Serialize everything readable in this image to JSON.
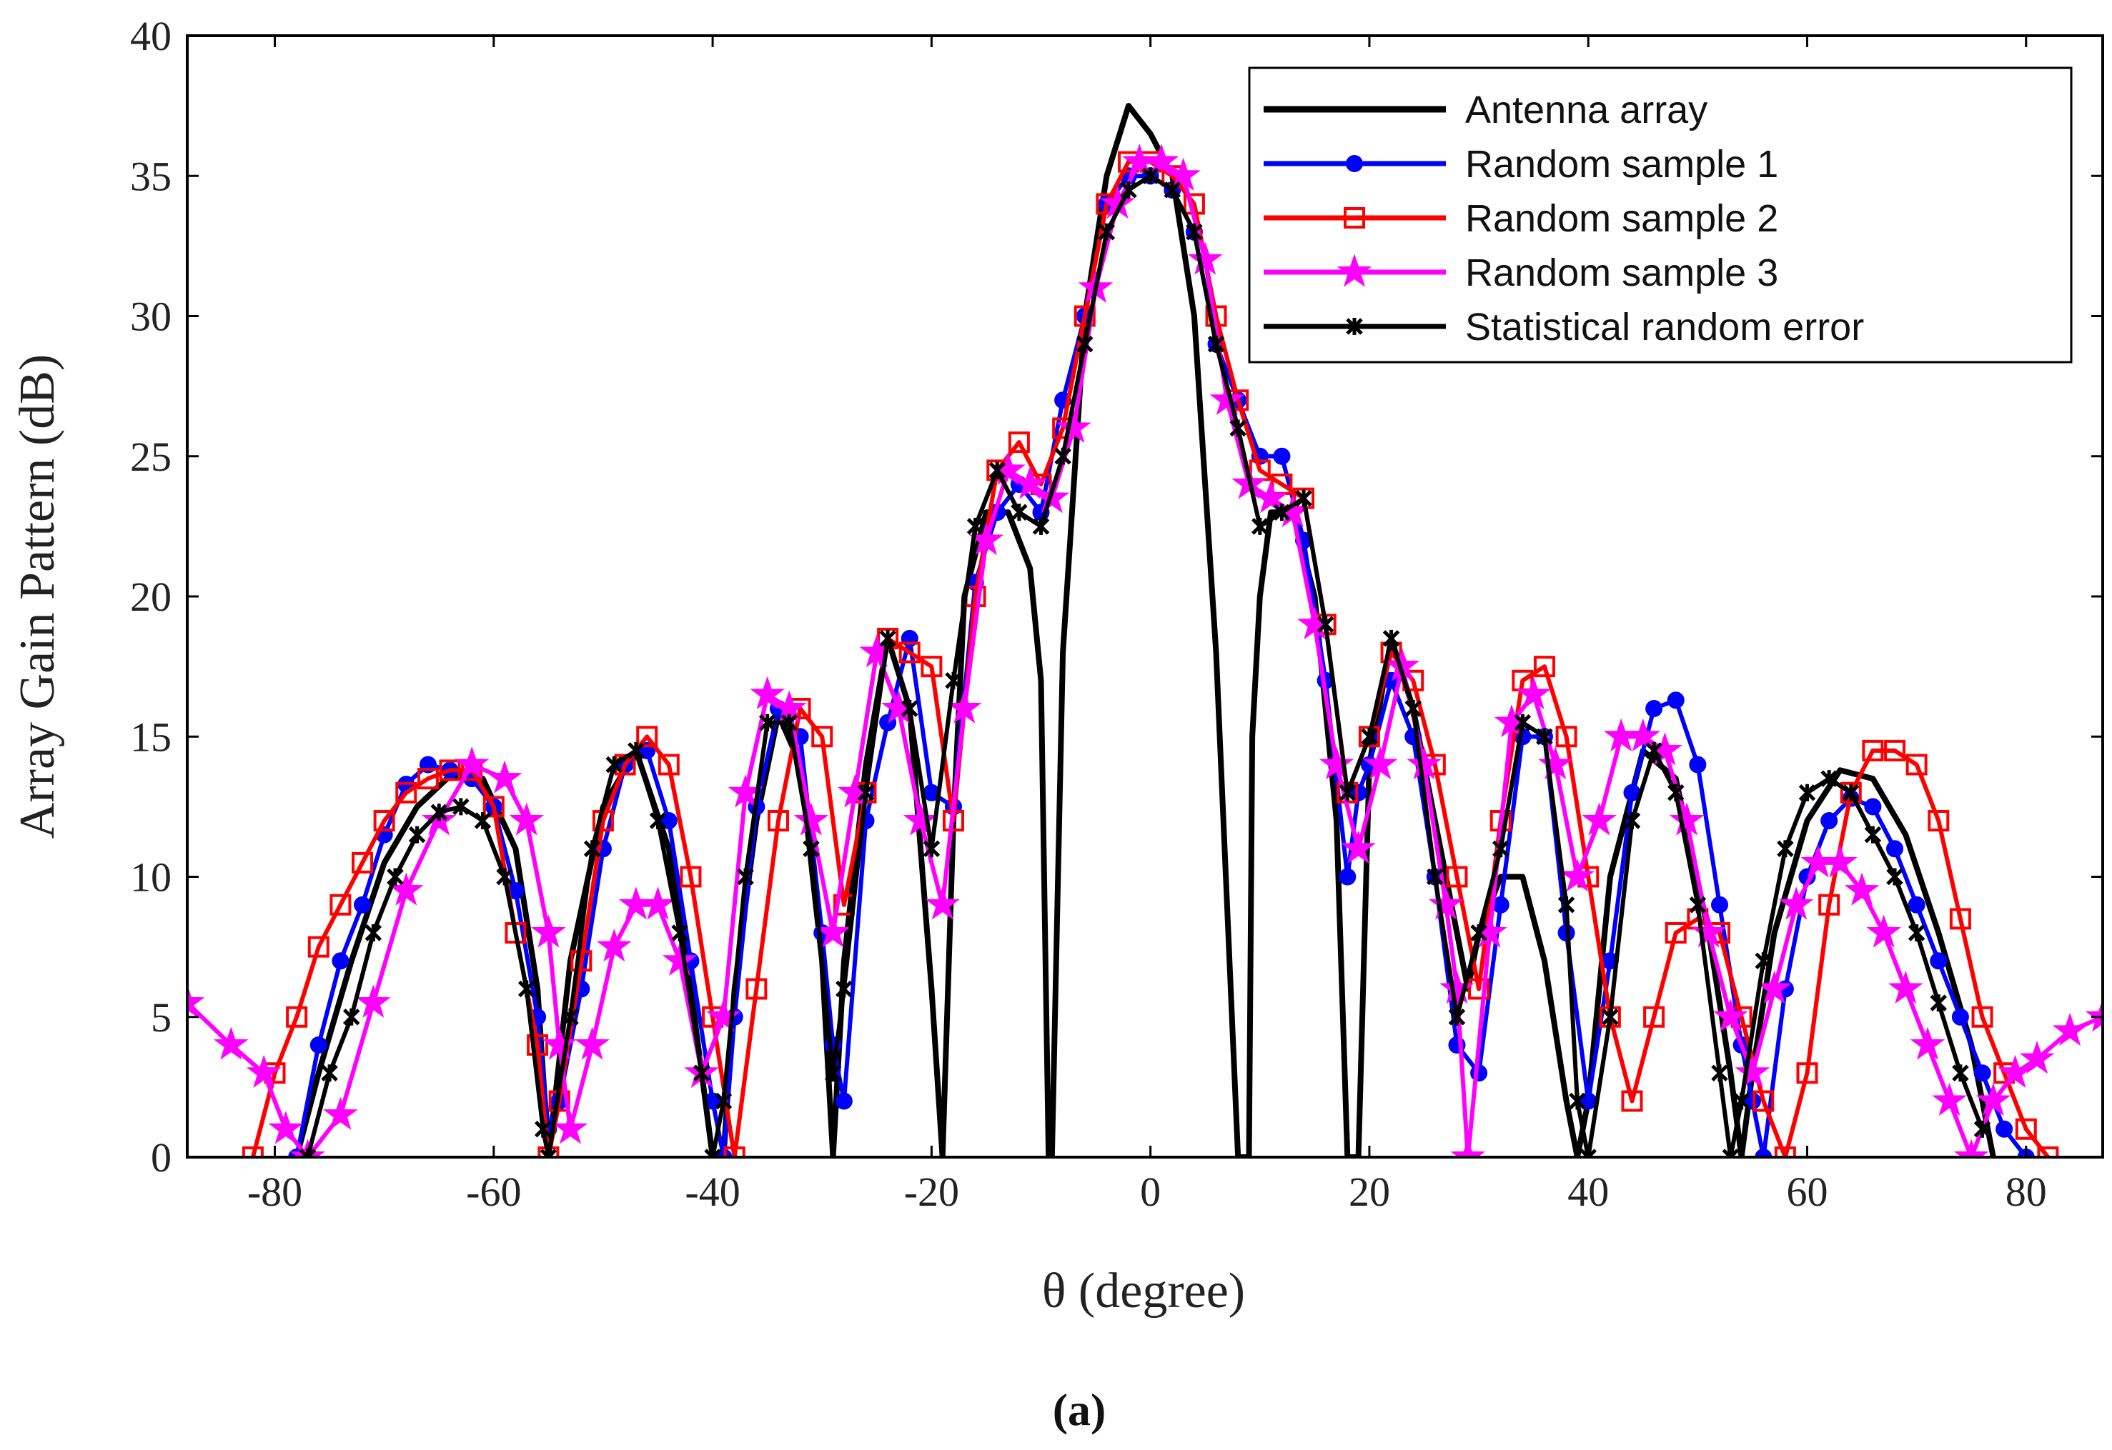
{
  "chart_data": {
    "type": "line",
    "title": "",
    "xlabel": "θ (degree)",
    "ylabel": "Array Gain Pattern (dB)",
    "xlim": [
      -88,
      87
    ],
    "ylim": [
      0,
      40
    ],
    "xticks": [
      -80,
      -60,
      -40,
      -20,
      0,
      20,
      40,
      60,
      80
    ],
    "xtick_labels": [
      "-80",
      "-60",
      "-40",
      "-20",
      "0",
      "20",
      "40",
      "60",
      "80"
    ],
    "yticks": [
      0,
      5,
      10,
      15,
      20,
      25,
      30,
      35,
      40
    ],
    "ytick_labels": [
      "0",
      "5",
      "10",
      "15",
      "20",
      "25",
      "30",
      "35",
      "40"
    ],
    "grid": false,
    "legend_position": "top-right",
    "caption": "(a)",
    "series": [
      {
        "name": "Antenna array",
        "color": "#000000",
        "marker": "none",
        "x": [
          -78,
          -76,
          -73,
          -70,
          -67,
          -64,
          -61,
          -58,
          -56,
          -55,
          -53,
          -50,
          -47,
          -44,
          -42,
          -40,
          -39,
          -38,
          -36,
          -34,
          -32,
          -30,
          -29,
          -28,
          -26,
          -24,
          -22,
          -20,
          -19,
          -18,
          -17,
          -15,
          -13,
          -11,
          -10,
          -9.3,
          -9,
          -8,
          -6,
          -4,
          -2,
          0,
          2,
          4,
          6,
          8,
          9,
          9.3,
          10,
          11,
          13,
          15,
          17,
          18,
          19,
          20,
          22,
          24,
          26,
          28,
          29,
          30,
          32,
          34,
          36,
          38,
          39,
          40,
          42,
          45,
          48,
          51,
          53,
          54,
          55,
          57,
          60,
          63,
          66,
          69,
          72,
          75,
          77
        ],
        "y": [
          0,
          3,
          7,
          10.5,
          12.5,
          13.6,
          13.5,
          11,
          6,
          0,
          7,
          12.5,
          14.5,
          11,
          6,
          0,
          0,
          6,
          12,
          15.8,
          14,
          7,
          0,
          7,
          14,
          18.5,
          16,
          6,
          0,
          12,
          20,
          23,
          23,
          21,
          17,
          0,
          0,
          18,
          30,
          35,
          37.5,
          36.5,
          35,
          30,
          18,
          0,
          0,
          15,
          20,
          23,
          23,
          20,
          12,
          0,
          0,
          14,
          18.5,
          16,
          12,
          8,
          6,
          8,
          10,
          10,
          7,
          2,
          0,
          2,
          10,
          14.5,
          13.5,
          8,
          3,
          0,
          3,
          8,
          12,
          13.8,
          13.5,
          11.5,
          8,
          4,
          0
        ]
      },
      {
        "name": "Random sample 1",
        "color": "#0000ff",
        "marker": "circle",
        "x": [
          -78,
          -76,
          -74,
          -72,
          -70,
          -68,
          -66,
          -64,
          -62,
          -60,
          -58,
          -56,
          -55,
          -54,
          -52,
          -50,
          -48,
          -46,
          -44,
          -42,
          -40,
          -39,
          -38,
          -36,
          -34,
          -32,
          -30,
          -29,
          -28,
          -26,
          -24,
          -22,
          -20,
          -18,
          -16,
          -14,
          -12,
          -10,
          -8,
          -6,
          -4,
          -2,
          0,
          2,
          4,
          6,
          8,
          10,
          12,
          14,
          16,
          18,
          19,
          20,
          22,
          24,
          26,
          28,
          30,
          32,
          34,
          36,
          38,
          40,
          42,
          44,
          46,
          48,
          50,
          52,
          54,
          55,
          56,
          58,
          60,
          62,
          64,
          66,
          68,
          70,
          72,
          74,
          76,
          78,
          80
        ],
        "y": [
          0,
          4,
          7,
          9,
          11.5,
          13.3,
          14,
          13.8,
          13.5,
          12.5,
          9.5,
          5,
          1,
          2,
          6,
          11,
          14,
          14.5,
          12,
          7,
          2,
          0,
          5,
          12.5,
          16,
          15,
          8,
          4,
          2,
          12,
          15.5,
          18.5,
          13,
          12.5,
          20.5,
          23,
          24,
          23,
          27,
          30,
          34,
          35,
          35,
          34.5,
          33,
          29,
          27,
          25,
          25,
          22,
          17,
          10,
          13,
          14,
          17,
          15,
          10,
          4,
          3,
          9,
          15,
          15,
          8,
          2,
          7,
          13,
          16,
          16.3,
          14,
          9,
          4,
          2,
          0,
          6,
          10,
          12,
          12.8,
          12.5,
          11,
          9,
          7,
          5,
          3,
          1,
          0
        ]
      },
      {
        "name": "Random sample 2",
        "color": "#ff0000",
        "marker": "square",
        "x": [
          -82,
          -80,
          -78,
          -76,
          -74,
          -72,
          -70,
          -68,
          -66,
          -64,
          -62,
          -60,
          -58,
          -56,
          -55,
          -54,
          -52,
          -50,
          -48,
          -46,
          -44,
          -42,
          -40,
          -38,
          -36,
          -34,
          -32,
          -30,
          -28,
          -26,
          -24,
          -22,
          -20,
          -18,
          -16,
          -14,
          -12,
          -10,
          -8,
          -6,
          -4,
          -2,
          0,
          2,
          4,
          6,
          8,
          10,
          12,
          14,
          16,
          18,
          20,
          22,
          24,
          26,
          28,
          30,
          32,
          34,
          36,
          38,
          40,
          42,
          44,
          46,
          48,
          50,
          52,
          54,
          56,
          58,
          60,
          62,
          64,
          66,
          68,
          70,
          72,
          74,
          76,
          78,
          80,
          82
        ],
        "y": [
          0,
          3,
          5,
          7.5,
          9,
          10.5,
          12,
          13,
          13.5,
          13.8,
          13.8,
          12.5,
          8,
          4,
          0,
          2,
          7,
          12,
          14,
          15,
          14,
          10,
          5,
          0,
          6,
          12,
          16,
          15,
          9,
          13,
          18.5,
          18,
          17.5,
          12,
          20,
          24.5,
          25.5,
          24,
          26,
          30,
          34,
          35.5,
          35.5,
          35,
          34,
          30,
          27,
          24.5,
          24,
          23.5,
          19,
          13,
          15,
          18,
          17,
          14,
          10,
          6,
          12,
          17,
          17.5,
          15,
          10,
          5,
          2,
          5,
          8,
          8.5,
          8,
          5,
          2,
          0,
          3,
          9,
          13,
          14.5,
          14.5,
          14,
          12,
          8.5,
          5,
          3,
          1,
          0
        ]
      },
      {
        "name": "Random sample 3",
        "color": "#ff00ff",
        "marker": "star",
        "x": [
          -88,
          -84,
          -81,
          -79,
          -77,
          -74,
          -71,
          -68,
          -65,
          -62,
          -59,
          -57,
          -55,
          -54,
          -53,
          -51,
          -49,
          -47,
          -45,
          -43,
          -41,
          -39,
          -37,
          -35,
          -33,
          -31,
          -29,
          -27,
          -25,
          -23,
          -21,
          -19,
          -17,
          -15,
          -13,
          -11,
          -9,
          -7,
          -5,
          -3,
          -1,
          1,
          3,
          5,
          7,
          9,
          11,
          13,
          15,
          17,
          19,
          21,
          23,
          25,
          27,
          28,
          29,
          31,
          33,
          35,
          37,
          39,
          41,
          43,
          45,
          47,
          49,
          51,
          53,
          55,
          57,
          59,
          61,
          63,
          65,
          67,
          69,
          71,
          73,
          75,
          77,
          79,
          81,
          84,
          87
        ],
        "y": [
          5.5,
          4,
          3,
          1,
          0,
          1.5,
          5.5,
          9.5,
          12,
          14,
          13.5,
          12,
          8,
          4,
          1,
          4,
          7.5,
          9,
          9,
          7,
          3,
          5,
          13,
          16.5,
          16,
          12,
          8,
          13,
          18,
          16,
          12,
          9,
          16,
          22,
          24.5,
          24,
          23.5,
          26,
          31,
          34,
          35.5,
          35.5,
          35,
          32,
          27,
          24,
          23.5,
          23,
          19,
          14,
          11,
          14,
          17.5,
          14,
          9,
          6,
          0,
          8,
          15.5,
          16.5,
          14,
          10,
          12,
          15,
          15,
          14.5,
          12,
          8,
          5,
          3,
          6,
          9,
          10.5,
          10.5,
          9.5,
          8,
          6,
          4,
          2,
          0,
          2,
          3,
          3.5,
          4.5,
          5
        ]
      },
      {
        "name": "Statistical random error",
        "color": "#000000",
        "marker": "x",
        "x": [
          -77,
          -75,
          -73,
          -71,
          -69,
          -67,
          -65,
          -63,
          -61,
          -59,
          -57,
          -55.5,
          -55,
          -53,
          -51,
          -49,
          -47,
          -45,
          -43,
          -41,
          -40,
          -39,
          -37,
          -35,
          -33,
          -31,
          -29,
          -28,
          -26,
          -24,
          -22,
          -20,
          -18,
          -16,
          -14,
          -12,
          -10,
          -8,
          -6,
          -4,
          -2,
          0,
          2,
          4,
          6,
          8,
          10,
          12,
          14,
          16,
          18,
          20,
          22,
          24,
          26,
          28,
          30,
          32,
          34,
          36,
          38,
          39,
          40,
          42,
          44,
          46,
          48,
          50,
          52,
          53,
          54,
          56,
          58,
          60,
          62,
          64,
          66,
          68,
          70,
          72,
          74,
          76
        ],
        "y": [
          0,
          3,
          5,
          8,
          10,
          11.5,
          12.3,
          12.5,
          12,
          10,
          6,
          1,
          0,
          5,
          11,
          14,
          14.5,
          12,
          8,
          3,
          0,
          2,
          10,
          15.5,
          15.5,
          11,
          3,
          6,
          13,
          18.5,
          16,
          11,
          17,
          22.5,
          24.5,
          23,
          22.5,
          25,
          29,
          33,
          34.5,
          35,
          34.5,
          33,
          29,
          26,
          22.5,
          23,
          23.5,
          19,
          13,
          15,
          18.5,
          16,
          10,
          5,
          8,
          11,
          15.5,
          15,
          9,
          2,
          0,
          5,
          12,
          14.5,
          13,
          9,
          3,
          0,
          2,
          7,
          11,
          13,
          13.5,
          13,
          11.5,
          10,
          8,
          5.5,
          3,
          1
        ]
      }
    ]
  }
}
